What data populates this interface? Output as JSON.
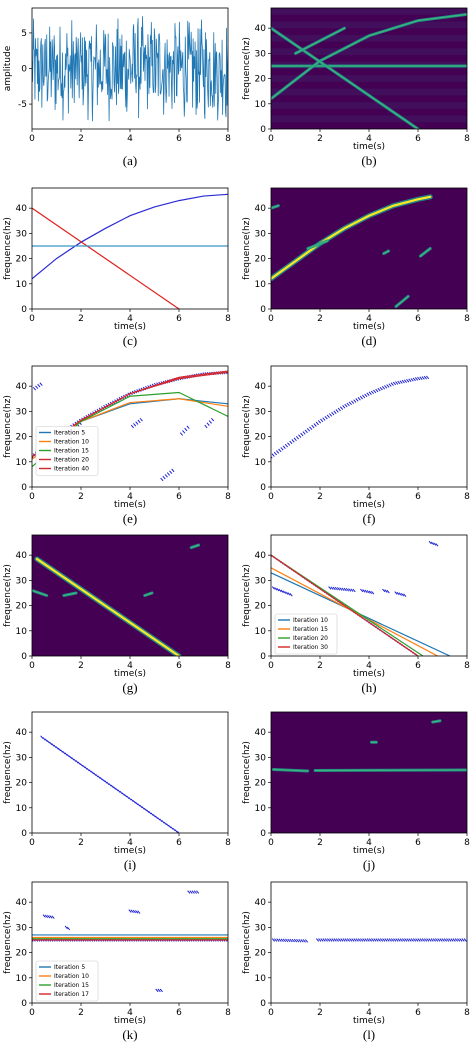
{
  "colors": {
    "signal": "#1f77b4",
    "viridis_bg": "#440154",
    "scatter": "#1c20d6",
    "line_blue": "#2b2bd6",
    "line_red": "#e0201c",
    "line_cyan": "#3a93c3",
    "iter": [
      "#1f77b4",
      "#ff7f0e",
      "#2ca02c",
      "#d62728",
      "#9467bd"
    ]
  },
  "chart_data": [
    {
      "id": "a",
      "type": "line",
      "caption": "(a)",
      "xlabel": "",
      "ylabel": "amplitude",
      "xlim": [
        0,
        8
      ],
      "ylim": [
        -8.5,
        8.5
      ],
      "xticks": [
        0,
        2,
        4,
        6,
        8
      ],
      "yticks": [
        -5,
        0,
        5
      ],
      "signal": {
        "samples": 400,
        "range": 7.5
      }
    },
    {
      "id": "b",
      "type": "heatmap",
      "caption": "(b)",
      "xlabel": "time(s)",
      "ylabel": "frequence(hz)",
      "xlim": [
        0,
        8
      ],
      "ylim": [
        0,
        48
      ],
      "xticks": [
        0,
        2,
        4,
        6,
        8
      ],
      "yticks": [
        0,
        10,
        20,
        30,
        40
      ],
      "ridges": [
        {
          "x": [
            0,
            8
          ],
          "y": [
            25,
            25
          ]
        },
        {
          "x": [
            0,
            2,
            4,
            6,
            8
          ],
          "y": [
            12,
            27,
            37,
            43,
            45.5
          ]
        },
        {
          "x": [
            0,
            6
          ],
          "y": [
            40,
            0
          ]
        },
        {
          "x": [
            1,
            3
          ],
          "y": [
            30,
            40
          ]
        }
      ]
    },
    {
      "id": "c",
      "type": "line",
      "caption": "(c)",
      "xlabel": "time(s)",
      "ylabel": "frequence(hz)",
      "xlim": [
        0,
        8
      ],
      "ylim": [
        0,
        48
      ],
      "xticks": [
        0,
        2,
        4,
        6,
        8
      ],
      "yticks": [
        0,
        10,
        20,
        30,
        40
      ],
      "series": [
        {
          "color": "line_blue",
          "x": [
            0,
            1,
            2,
            3,
            4,
            5,
            6,
            7,
            8
          ],
          "y": [
            12,
            20,
            26.5,
            32,
            37,
            40.5,
            43,
            44.8,
            45.5
          ]
        },
        {
          "color": "line_red",
          "x": [
            0,
            6
          ],
          "y": [
            40,
            0
          ]
        },
        {
          "color": "line_cyan",
          "x": [
            0,
            8
          ],
          "y": [
            25,
            25
          ]
        }
      ]
    },
    {
      "id": "d",
      "type": "heatmap",
      "caption": "(d)",
      "xlabel": "time(s)",
      "ylabel": "frequence(hz)",
      "xlim": [
        0,
        8
      ],
      "ylim": [
        0,
        48
      ],
      "xticks": [
        0,
        2,
        4,
        6,
        8
      ],
      "yticks": [
        0,
        10,
        20,
        30,
        40
      ],
      "ridges": [
        {
          "x": [
            0,
            1,
            2,
            3,
            4,
            5,
            6,
            6.5
          ],
          "y": [
            12,
            19,
            26,
            32,
            37,
            41,
            43.5,
            44.5
          ]
        },
        {
          "x": [
            1.5,
            2.3
          ],
          "y": [
            24,
            27
          ]
        },
        {
          "x": [
            5.1,
            5.6
          ],
          "y": [
            1,
            5
          ]
        },
        {
          "x": [
            6.1,
            6.5
          ],
          "y": [
            21,
            24
          ]
        },
        {
          "x": [
            4.6,
            4.8
          ],
          "y": [
            22,
            23
          ]
        },
        {
          "x": [
            0,
            0.3
          ],
          "y": [
            40,
            41
          ]
        }
      ]
    },
    {
      "id": "e",
      "type": "scatter",
      "caption": "(e)",
      "xlabel": "time(s)",
      "ylabel": "frequence(hz)",
      "xlim": [
        0,
        8
      ],
      "ylim": [
        0,
        48
      ],
      "xticks": [
        0,
        2,
        4,
        6,
        8
      ],
      "yticks": [
        0,
        10,
        20,
        30,
        40
      ],
      "scatter": [
        {
          "x": [
            0,
            1,
            2,
            3,
            4,
            5,
            6,
            7,
            8
          ],
          "y": [
            12,
            20,
            26.5,
            32,
            37,
            40.5,
            43,
            44.8,
            45.5
          ]
        },
        {
          "x": [
            0.1,
            0.4
          ],
          "y": [
            39,
            41
          ]
        },
        {
          "x": [
            1.7,
            2.0
          ],
          "y": [
            23,
            25.5
          ]
        },
        {
          "x": [
            4.1,
            4.5
          ],
          "y": [
            24,
            27
          ]
        },
        {
          "x": [
            5.3,
            5.8
          ],
          "y": [
            3,
            7
          ]
        },
        {
          "x": [
            6.1,
            6.4
          ],
          "y": [
            21,
            24
          ]
        },
        {
          "x": [
            7.1,
            7.4
          ],
          "y": [
            24,
            27
          ]
        }
      ],
      "series": [
        {
          "name": "Iteration 5",
          "color": 0,
          "x": [
            0,
            2,
            4,
            6,
            8
          ],
          "y": [
            12,
            26,
            33,
            35,
            33
          ]
        },
        {
          "name": "Iteration 10",
          "color": 1,
          "x": [
            0,
            2,
            4,
            6,
            8
          ],
          "y": [
            11,
            26,
            33.5,
            35,
            32
          ]
        },
        {
          "name": "Iteration 15",
          "color": 2,
          "x": [
            0,
            2,
            4,
            6,
            8
          ],
          "y": [
            8,
            26,
            36,
            37.5,
            28
          ]
        },
        {
          "name": "Iteration 20",
          "color": 3,
          "x": [
            0,
            2,
            4,
            6,
            8
          ],
          "y": [
            12,
            26.5,
            37,
            43.5,
            46
          ]
        },
        {
          "name": "Iteration 40",
          "color": 3,
          "x": [
            0,
            2,
            4,
            6,
            8
          ],
          "y": [
            12,
            26.5,
            37,
            43,
            45.5
          ]
        }
      ],
      "legend": "center-left"
    },
    {
      "id": "f",
      "type": "scatter",
      "caption": "(f)",
      "xlabel": "time(s)",
      "ylabel": "frequence(hz)",
      "xlim": [
        0,
        8
      ],
      "ylim": [
        0,
        48
      ],
      "xticks": [
        0,
        2,
        4,
        6,
        8
      ],
      "yticks": [
        0,
        10,
        20,
        30,
        40
      ],
      "scatter": [
        {
          "x": [
            0,
            1,
            2,
            3,
            4,
            5,
            6,
            6.4
          ],
          "y": [
            12,
            19,
            26,
            32,
            37,
            41,
            43,
            43.5
          ]
        }
      ]
    },
    {
      "id": "g",
      "type": "heatmap",
      "caption": "(g)",
      "xlabel": "time(s)",
      "ylabel": "frequence(hz)",
      "xlim": [
        0,
        8
      ],
      "ylim": [
        0,
        48
      ],
      "xticks": [
        0,
        2,
        4,
        6,
        8
      ],
      "yticks": [
        0,
        10,
        20,
        30,
        40
      ],
      "ridges": [
        {
          "x": [
            0.2,
            6
          ],
          "y": [
            38.5,
            0
          ]
        },
        {
          "x": [
            0,
            0.6
          ],
          "y": [
            26,
            24
          ]
        },
        {
          "x": [
            1.3,
            1.8
          ],
          "y": [
            24,
            25
          ]
        },
        {
          "x": [
            4.6,
            4.9
          ],
          "y": [
            24,
            25
          ]
        },
        {
          "x": [
            6.5,
            6.8
          ],
          "y": [
            43,
            44
          ]
        }
      ]
    },
    {
      "id": "h",
      "type": "scatter",
      "caption": "(h)",
      "xlabel": "time(s)",
      "ylabel": "frequence(hz)",
      "xlim": [
        0,
        8
      ],
      "ylim": [
        0,
        48
      ],
      "xticks": [
        0,
        2,
        4,
        6,
        8
      ],
      "yticks": [
        0,
        10,
        20,
        30,
        40
      ],
      "scatter": [
        {
          "x": [
            0,
            6
          ],
          "y": [
            40,
            0
          ]
        },
        {
          "x": [
            0.1,
            0.9
          ],
          "y": [
            27,
            24
          ]
        },
        {
          "x": [
            2.4,
            3.4
          ],
          "y": [
            27,
            26
          ]
        },
        {
          "x": [
            3.7,
            4.2
          ],
          "y": [
            26,
            25
          ]
        },
        {
          "x": [
            4.6,
            4.8
          ],
          "y": [
            26,
            25.5
          ]
        },
        {
          "x": [
            5.1,
            5.5
          ],
          "y": [
            25,
            24
          ]
        },
        {
          "x": [
            6.5,
            6.8
          ],
          "y": [
            45,
            44
          ]
        }
      ],
      "series": [
        {
          "name": "Iteration 10",
          "color": 0,
          "x": [
            0,
            7.3
          ],
          "y": [
            33,
            0
          ]
        },
        {
          "name": "Iteration 15",
          "color": 1,
          "x": [
            0,
            6.8
          ],
          "y": [
            35,
            0
          ]
        },
        {
          "name": "Iteration 20",
          "color": 2,
          "x": [
            0,
            6.2
          ],
          "y": [
            40,
            0
          ]
        },
        {
          "name": "Iteration 30",
          "color": 3,
          "x": [
            0,
            6.0
          ],
          "y": [
            40,
            0
          ]
        }
      ],
      "legend": "lower-left"
    },
    {
      "id": "i",
      "type": "scatter",
      "caption": "(i)",
      "xlabel": "time(s)",
      "ylabel": "frequence(hz)",
      "xlim": [
        0,
        8
      ],
      "ylim": [
        0,
        48
      ],
      "xticks": [
        0,
        2,
        4,
        6,
        8
      ],
      "yticks": [
        0,
        10,
        20,
        30,
        40
      ],
      "scatter": [
        {
          "x": [
            0.4,
            6
          ],
          "y": [
            38,
            0
          ]
        }
      ]
    },
    {
      "id": "j",
      "type": "heatmap",
      "caption": "(j)",
      "xlabel": "time(s)",
      "ylabel": "frequence(hz)",
      "xlim": [
        0,
        8
      ],
      "ylim": [
        0,
        48
      ],
      "xticks": [
        0,
        2,
        4,
        6,
        8
      ],
      "yticks": [
        0,
        10,
        20,
        30,
        40
      ],
      "ridges": [
        {
          "x": [
            0.1,
            1.5
          ],
          "y": [
            25.2,
            24.6
          ]
        },
        {
          "x": [
            1.8,
            8
          ],
          "y": [
            24.8,
            25
          ]
        },
        {
          "x": [
            6.6,
            6.9
          ],
          "y": [
            44,
            44.5
          ]
        },
        {
          "x": [
            4.1,
            4.3
          ],
          "y": [
            36,
            36
          ]
        }
      ]
    },
    {
      "id": "k",
      "type": "scatter",
      "caption": "(k)",
      "xlabel": "time(s)",
      "ylabel": "frequence(hz)",
      "xlim": [
        0,
        8
      ],
      "ylim": [
        0,
        48
      ],
      "xticks": [
        0,
        2,
        4,
        6,
        8
      ],
      "yticks": [
        0,
        10,
        20,
        30,
        40
      ],
      "scatter": [
        {
          "x": [
            0,
            8
          ],
          "y": [
            25,
            25
          ]
        },
        {
          "x": [
            0.5,
            0.9
          ],
          "y": [
            34.5,
            34
          ]
        },
        {
          "x": [
            1.4,
            1.5
          ],
          "y": [
            30,
            29.5
          ]
        },
        {
          "x": [
            4.0,
            4.4
          ],
          "y": [
            36.5,
            36
          ]
        },
        {
          "x": [
            5.1,
            5.3
          ],
          "y": [
            5,
            5
          ]
        },
        {
          "x": [
            6.4,
            6.8
          ],
          "y": [
            44,
            44
          ]
        }
      ],
      "series": [
        {
          "name": "Iteration 5",
          "color": 0,
          "x": [
            0,
            8
          ],
          "y": [
            27,
            27
          ]
        },
        {
          "name": "Iteration 10",
          "color": 1,
          "x": [
            0,
            8
          ],
          "y": [
            26,
            26
          ]
        },
        {
          "name": "Iteration 15",
          "color": 2,
          "x": [
            0,
            8
          ],
          "y": [
            25.5,
            25.5
          ]
        },
        {
          "name": "Iteration 17",
          "color": 3,
          "x": [
            0,
            8
          ],
          "y": [
            25,
            25
          ]
        }
      ],
      "legend": "lower-left"
    },
    {
      "id": "l",
      "type": "scatter",
      "caption": "(l)",
      "xlabel": "time(s)",
      "ylabel": "frequence(hz)",
      "xlim": [
        0,
        8
      ],
      "ylim": [
        0,
        48
      ],
      "xticks": [
        0,
        2,
        4,
        6,
        8
      ],
      "yticks": [
        0,
        10,
        20,
        30,
        40
      ],
      "scatter": [
        {
          "x": [
            0.1,
            1.5
          ],
          "y": [
            25,
            24.6
          ]
        },
        {
          "x": [
            1.9,
            8
          ],
          "y": [
            25,
            25
          ]
        }
      ]
    }
  ]
}
